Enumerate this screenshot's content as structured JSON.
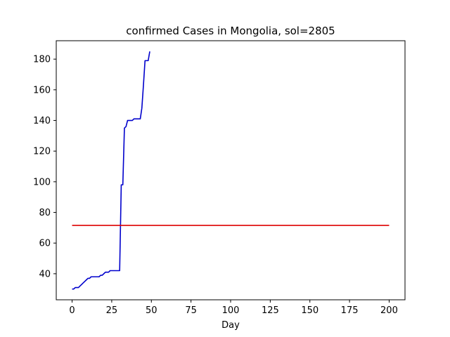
{
  "chart_data": {
    "type": "line",
    "title": "confirmed Cases in Mongolia, sol=2805",
    "xlabel": "Day",
    "ylabel": "",
    "xlim": [
      -10,
      210
    ],
    "ylim": [
      23,
      192
    ],
    "xticks": [
      0,
      25,
      50,
      75,
      100,
      125,
      150,
      175,
      200
    ],
    "yticks": [
      40,
      60,
      80,
      100,
      120,
      140,
      160,
      180
    ],
    "grid": false,
    "series": [
      {
        "color": "#0000cc",
        "x": [
          0,
          1,
          2,
          3,
          4,
          5,
          6,
          7,
          8,
          9,
          10,
          11,
          12,
          13,
          14,
          15,
          16,
          17,
          18,
          19,
          20,
          21,
          22,
          23,
          24,
          25,
          26,
          27,
          28,
          29,
          30,
          31,
          32,
          33,
          34,
          35,
          36,
          37,
          38,
          39,
          40,
          41,
          42,
          43,
          44,
          45,
          46,
          47,
          48,
          49
        ],
        "y": [
          30,
          30,
          31,
          31,
          31,
          32,
          33,
          34,
          35,
          36,
          37,
          37,
          38,
          38,
          38,
          38,
          38,
          38,
          39,
          39,
          40,
          41,
          41,
          41,
          42,
          42,
          42,
          42,
          42,
          42,
          42,
          98,
          98,
          135,
          136,
          140,
          140,
          140,
          140,
          141,
          141,
          141,
          141,
          141,
          148,
          163,
          179,
          179,
          179,
          185
        ]
      },
      {
        "color": "#dd0000",
        "x": [
          0,
          200
        ],
        "y": [
          71.5,
          71.5
        ]
      }
    ]
  }
}
